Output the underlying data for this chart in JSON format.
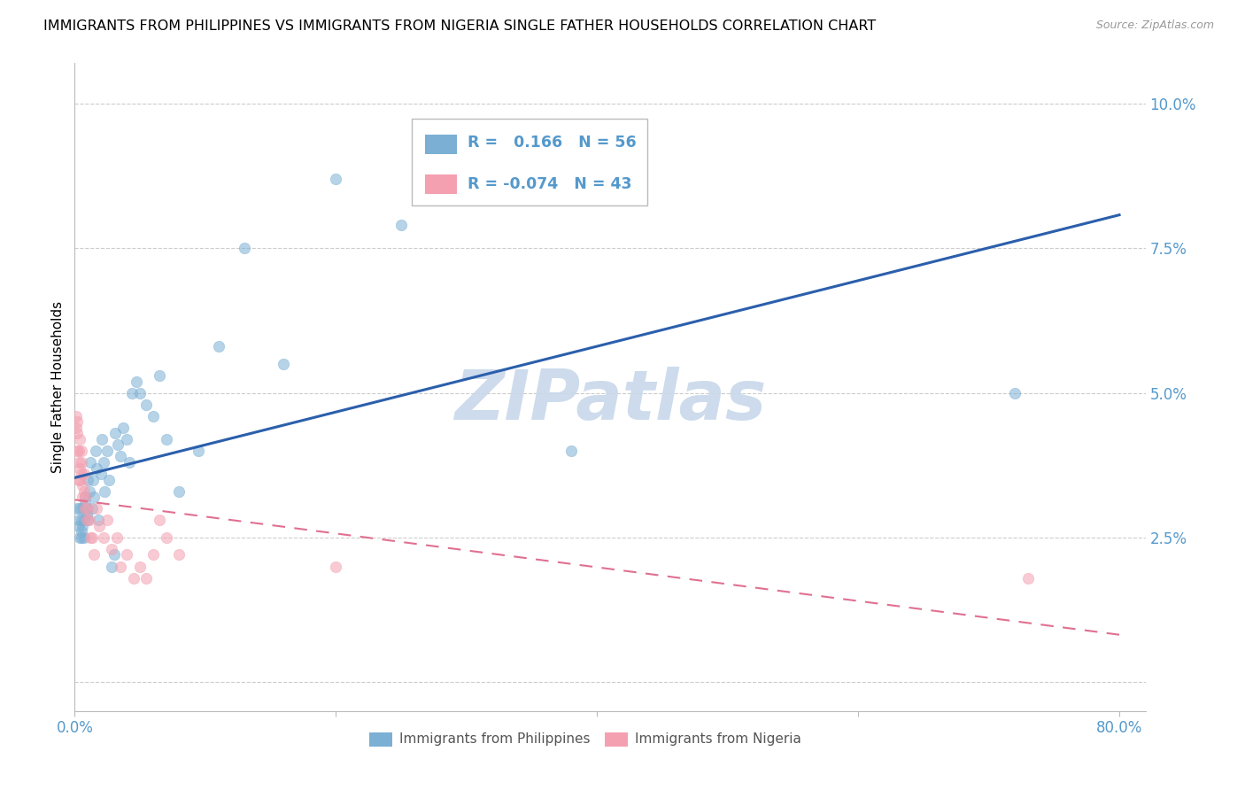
{
  "title": "IMMIGRANTS FROM PHILIPPINES VS IMMIGRANTS FROM NIGERIA SINGLE FATHER HOUSEHOLDS CORRELATION CHART",
  "source": "Source: ZipAtlas.com",
  "ylabel": "Single Father Households",
  "yticks": [
    0.0,
    0.025,
    0.05,
    0.075,
    0.1
  ],
  "ytick_labels": [
    "",
    "2.5%",
    "5.0%",
    "7.5%",
    "10.0%"
  ],
  "xticks": [
    0.0,
    0.2,
    0.4,
    0.6,
    0.8
  ],
  "xtick_labels": [
    "0.0%",
    "",
    "",
    "",
    "80.0%"
  ],
  "xlim": [
    0.0,
    0.82
  ],
  "ylim": [
    -0.005,
    0.107
  ],
  "watermark": "ZIPatlas",
  "legend_r1_val": "0.166",
  "legend_n1_val": "56",
  "legend_r2_val": "-0.074",
  "legend_n2_val": "43",
  "philippines_color": "#7BAFD4",
  "nigeria_color": "#F4A0B0",
  "philippines_line_color": "#2B5FAC",
  "nigeria_line_color": "#E07090",
  "background_color": "#FFFFFF",
  "grid_color": "#CCCCCC",
  "title_fontsize": 11.5,
  "axis_label_color": "#5599CC",
  "watermark_color": "#C8D8EA",
  "watermark_alpha": 0.9,
  "philippines_x": [
    0.002,
    0.003,
    0.003,
    0.004,
    0.004,
    0.005,
    0.005,
    0.005,
    0.006,
    0.006,
    0.007,
    0.007,
    0.008,
    0.008,
    0.009,
    0.009,
    0.01,
    0.01,
    0.011,
    0.012,
    0.013,
    0.014,
    0.015,
    0.016,
    0.017,
    0.018,
    0.02,
    0.021,
    0.022,
    0.023,
    0.025,
    0.026,
    0.028,
    0.03,
    0.031,
    0.033,
    0.035,
    0.037,
    0.04,
    0.042,
    0.044,
    0.047,
    0.05,
    0.055,
    0.06,
    0.065,
    0.07,
    0.08,
    0.095,
    0.11,
    0.13,
    0.16,
    0.2,
    0.25,
    0.38,
    0.72
  ],
  "philippines_y": [
    0.03,
    0.028,
    0.027,
    0.025,
    0.03,
    0.028,
    0.026,
    0.025,
    0.027,
    0.03,
    0.025,
    0.028,
    0.032,
    0.031,
    0.029,
    0.03,
    0.028,
    0.035,
    0.033,
    0.038,
    0.03,
    0.035,
    0.032,
    0.04,
    0.037,
    0.028,
    0.036,
    0.042,
    0.038,
    0.033,
    0.04,
    0.035,
    0.02,
    0.022,
    0.043,
    0.041,
    0.039,
    0.044,
    0.042,
    0.038,
    0.05,
    0.052,
    0.05,
    0.048,
    0.046,
    0.053,
    0.042,
    0.033,
    0.04,
    0.058,
    0.075,
    0.055,
    0.087,
    0.079,
    0.04,
    0.05
  ],
  "nigeria_x": [
    0.001,
    0.001,
    0.002,
    0.002,
    0.002,
    0.003,
    0.003,
    0.003,
    0.004,
    0.004,
    0.004,
    0.005,
    0.005,
    0.005,
    0.006,
    0.006,
    0.007,
    0.007,
    0.008,
    0.008,
    0.009,
    0.01,
    0.011,
    0.012,
    0.013,
    0.015,
    0.017,
    0.019,
    0.022,
    0.025,
    0.028,
    0.032,
    0.035,
    0.04,
    0.045,
    0.05,
    0.055,
    0.06,
    0.065,
    0.07,
    0.08,
    0.2,
    0.73
  ],
  "nigeria_y": [
    0.044,
    0.046,
    0.04,
    0.043,
    0.045,
    0.035,
    0.038,
    0.04,
    0.035,
    0.037,
    0.042,
    0.038,
    0.04,
    0.036,
    0.032,
    0.034,
    0.033,
    0.036,
    0.03,
    0.032,
    0.028,
    0.03,
    0.028,
    0.025,
    0.025,
    0.022,
    0.03,
    0.027,
    0.025,
    0.028,
    0.023,
    0.025,
    0.02,
    0.022,
    0.018,
    0.02,
    0.018,
    0.022,
    0.028,
    0.025,
    0.022,
    0.02,
    0.018
  ]
}
